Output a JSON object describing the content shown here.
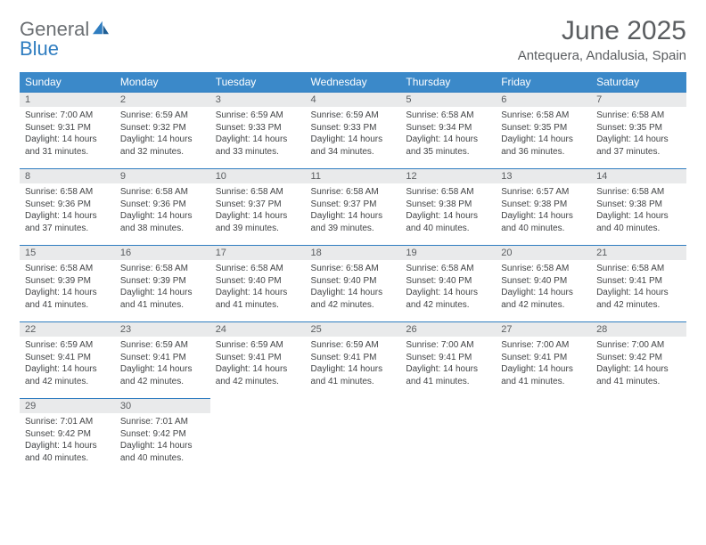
{
  "logo": {
    "word1": "General",
    "word2": "Blue"
  },
  "title": "June 2025",
  "subtitle": "Antequera, Andalusia, Spain",
  "colors": {
    "header_bg": "#3b89c9",
    "header_text": "#ffffff",
    "daynum_bg": "#e9eaeb",
    "daynum_border": "#2f7dc0",
    "text": "#424446",
    "title": "#5a5d60"
  },
  "weekdays": [
    "Sunday",
    "Monday",
    "Tuesday",
    "Wednesday",
    "Thursday",
    "Friday",
    "Saturday"
  ],
  "weeks": [
    [
      {
        "num": "1",
        "sunrise": "7:00 AM",
        "sunset": "9:31 PM",
        "dl1": "Daylight: 14 hours",
        "dl2": "and 31 minutes."
      },
      {
        "num": "2",
        "sunrise": "6:59 AM",
        "sunset": "9:32 PM",
        "dl1": "Daylight: 14 hours",
        "dl2": "and 32 minutes."
      },
      {
        "num": "3",
        "sunrise": "6:59 AM",
        "sunset": "9:33 PM",
        "dl1": "Daylight: 14 hours",
        "dl2": "and 33 minutes."
      },
      {
        "num": "4",
        "sunrise": "6:59 AM",
        "sunset": "9:33 PM",
        "dl1": "Daylight: 14 hours",
        "dl2": "and 34 minutes."
      },
      {
        "num": "5",
        "sunrise": "6:58 AM",
        "sunset": "9:34 PM",
        "dl1": "Daylight: 14 hours",
        "dl2": "and 35 minutes."
      },
      {
        "num": "6",
        "sunrise": "6:58 AM",
        "sunset": "9:35 PM",
        "dl1": "Daylight: 14 hours",
        "dl2": "and 36 minutes."
      },
      {
        "num": "7",
        "sunrise": "6:58 AM",
        "sunset": "9:35 PM",
        "dl1": "Daylight: 14 hours",
        "dl2": "and 37 minutes."
      }
    ],
    [
      {
        "num": "8",
        "sunrise": "6:58 AM",
        "sunset": "9:36 PM",
        "dl1": "Daylight: 14 hours",
        "dl2": "and 37 minutes."
      },
      {
        "num": "9",
        "sunrise": "6:58 AM",
        "sunset": "9:36 PM",
        "dl1": "Daylight: 14 hours",
        "dl2": "and 38 minutes."
      },
      {
        "num": "10",
        "sunrise": "6:58 AM",
        "sunset": "9:37 PM",
        "dl1": "Daylight: 14 hours",
        "dl2": "and 39 minutes."
      },
      {
        "num": "11",
        "sunrise": "6:58 AM",
        "sunset": "9:37 PM",
        "dl1": "Daylight: 14 hours",
        "dl2": "and 39 minutes."
      },
      {
        "num": "12",
        "sunrise": "6:58 AM",
        "sunset": "9:38 PM",
        "dl1": "Daylight: 14 hours",
        "dl2": "and 40 minutes."
      },
      {
        "num": "13",
        "sunrise": "6:57 AM",
        "sunset": "9:38 PM",
        "dl1": "Daylight: 14 hours",
        "dl2": "and 40 minutes."
      },
      {
        "num": "14",
        "sunrise": "6:58 AM",
        "sunset": "9:38 PM",
        "dl1": "Daylight: 14 hours",
        "dl2": "and 40 minutes."
      }
    ],
    [
      {
        "num": "15",
        "sunrise": "6:58 AM",
        "sunset": "9:39 PM",
        "dl1": "Daylight: 14 hours",
        "dl2": "and 41 minutes."
      },
      {
        "num": "16",
        "sunrise": "6:58 AM",
        "sunset": "9:39 PM",
        "dl1": "Daylight: 14 hours",
        "dl2": "and 41 minutes."
      },
      {
        "num": "17",
        "sunrise": "6:58 AM",
        "sunset": "9:40 PM",
        "dl1": "Daylight: 14 hours",
        "dl2": "and 41 minutes."
      },
      {
        "num": "18",
        "sunrise": "6:58 AM",
        "sunset": "9:40 PM",
        "dl1": "Daylight: 14 hours",
        "dl2": "and 42 minutes."
      },
      {
        "num": "19",
        "sunrise": "6:58 AM",
        "sunset": "9:40 PM",
        "dl1": "Daylight: 14 hours",
        "dl2": "and 42 minutes."
      },
      {
        "num": "20",
        "sunrise": "6:58 AM",
        "sunset": "9:40 PM",
        "dl1": "Daylight: 14 hours",
        "dl2": "and 42 minutes."
      },
      {
        "num": "21",
        "sunrise": "6:58 AM",
        "sunset": "9:41 PM",
        "dl1": "Daylight: 14 hours",
        "dl2": "and 42 minutes."
      }
    ],
    [
      {
        "num": "22",
        "sunrise": "6:59 AM",
        "sunset": "9:41 PM",
        "dl1": "Daylight: 14 hours",
        "dl2": "and 42 minutes."
      },
      {
        "num": "23",
        "sunrise": "6:59 AM",
        "sunset": "9:41 PM",
        "dl1": "Daylight: 14 hours",
        "dl2": "and 42 minutes."
      },
      {
        "num": "24",
        "sunrise": "6:59 AM",
        "sunset": "9:41 PM",
        "dl1": "Daylight: 14 hours",
        "dl2": "and 42 minutes."
      },
      {
        "num": "25",
        "sunrise": "6:59 AM",
        "sunset": "9:41 PM",
        "dl1": "Daylight: 14 hours",
        "dl2": "and 41 minutes."
      },
      {
        "num": "26",
        "sunrise": "7:00 AM",
        "sunset": "9:41 PM",
        "dl1": "Daylight: 14 hours",
        "dl2": "and 41 minutes."
      },
      {
        "num": "27",
        "sunrise": "7:00 AM",
        "sunset": "9:41 PM",
        "dl1": "Daylight: 14 hours",
        "dl2": "and 41 minutes."
      },
      {
        "num": "28",
        "sunrise": "7:00 AM",
        "sunset": "9:42 PM",
        "dl1": "Daylight: 14 hours",
        "dl2": "and 41 minutes."
      }
    ],
    [
      {
        "num": "29",
        "sunrise": "7:01 AM",
        "sunset": "9:42 PM",
        "dl1": "Daylight: 14 hours",
        "dl2": "and 40 minutes."
      },
      {
        "num": "30",
        "sunrise": "7:01 AM",
        "sunset": "9:42 PM",
        "dl1": "Daylight: 14 hours",
        "dl2": "and 40 minutes."
      },
      null,
      null,
      null,
      null,
      null
    ]
  ],
  "labels": {
    "sunrise": "Sunrise:",
    "sunset": "Sunset:"
  }
}
